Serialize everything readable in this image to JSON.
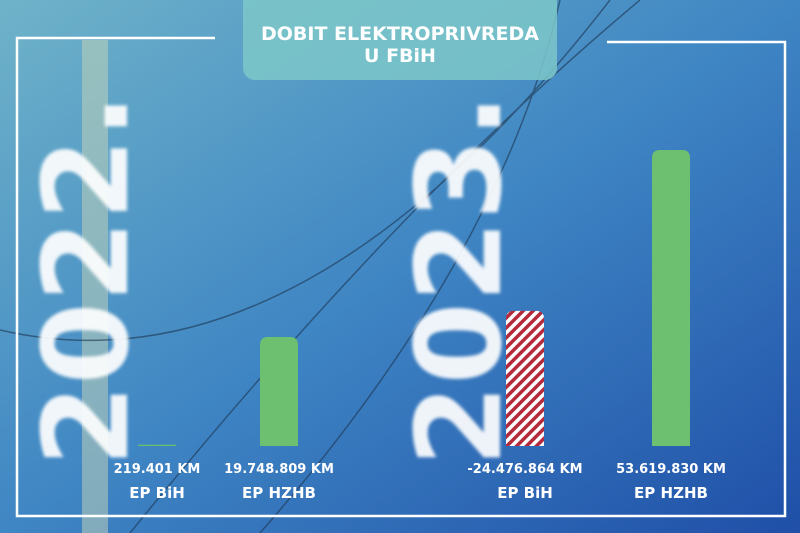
{
  "title": "DOBIT ELEKTROPRIVREDA U FBiH",
  "chart_data": [
    {
      "type": "bar",
      "subtitle": "2022.",
      "categories": [
        "EP BiH",
        "EP HZHB"
      ],
      "values": [
        219401,
        19748809
      ],
      "value_labels": [
        "219.401 KM",
        "19.748.809 KM"
      ],
      "color": "#6cc070",
      "negative_color": "#b52a3a"
    },
    {
      "type": "bar",
      "subtitle": "2023.",
      "categories": [
        "EP BiH",
        "EP HZHB"
      ],
      "values": [
        -24476864,
        53619830
      ],
      "value_labels": [
        "-24.476.864 KM",
        "53.619.830 KM"
      ],
      "color": "#6cc070",
      "negative_color": "#b52a3a"
    }
  ]
}
